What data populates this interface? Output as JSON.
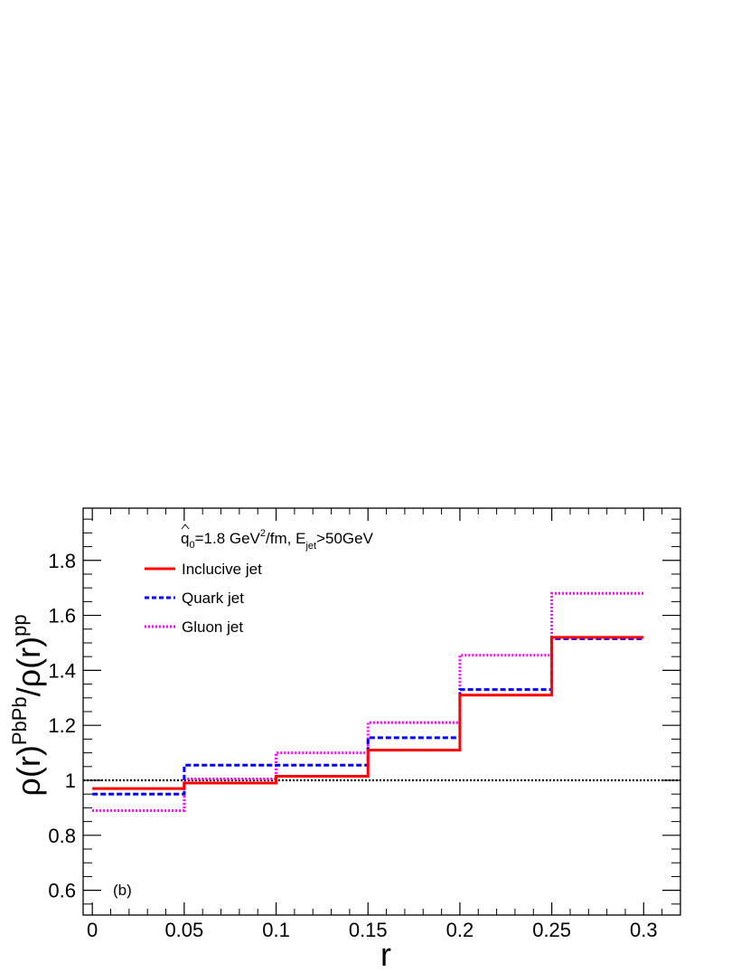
{
  "chart_data": {
    "type": "line",
    "step": true,
    "x_edges": [
      0,
      0.05,
      0.1,
      0.15,
      0.2,
      0.25,
      0.3
    ],
    "xlim": [
      -0.005,
      0.32
    ],
    "ylim": [
      0.51,
      1.99
    ],
    "xlabel": "r",
    "ylabel": {
      "base": "ρ(r)",
      "num_sup": "PbPb",
      "slash": "/",
      "den": "ρ(r)",
      "den_sup": "pp"
    },
    "x_ticks": [
      {
        "value": 0,
        "label": "0"
      },
      {
        "value": 0.05,
        "label": "0.05"
      },
      {
        "value": 0.1,
        "label": "0.1"
      },
      {
        "value": 0.15,
        "label": "0.15"
      },
      {
        "value": 0.2,
        "label": "0.2"
      },
      {
        "value": 0.25,
        "label": "0.25"
      },
      {
        "value": 0.3,
        "label": "0.3"
      }
    ],
    "y_ticks": [
      {
        "value": 0.6,
        "label": "0.6"
      },
      {
        "value": 0.8,
        "label": "0.8"
      },
      {
        "value": 1.0,
        "label": "1"
      },
      {
        "value": 1.2,
        "label": "1.2"
      },
      {
        "value": 1.4,
        "label": "1.4"
      },
      {
        "value": 1.6,
        "label": "1.6"
      },
      {
        "value": 1.8,
        "label": "1.8"
      }
    ],
    "reference_line": {
      "y": 1.0,
      "color": "#000000",
      "style": "dotted"
    },
    "series": [
      {
        "name": "Inclucive jet",
        "values": [
          0.97,
          0.99,
          1.015,
          1.11,
          1.31,
          1.52
        ],
        "color": "#ff0000",
        "style": "solid"
      },
      {
        "name": "Quark jet",
        "values": [
          0.95,
          1.055,
          1.055,
          1.155,
          1.33,
          1.515
        ],
        "color": "#0000ff",
        "style": "dashed"
      },
      {
        "name": "Gluon jet",
        "values": [
          0.89,
          1.005,
          1.1,
          1.21,
          1.455,
          1.68
        ],
        "color": "#ff00ff",
        "style": "dotted"
      }
    ],
    "annotation": {
      "qhat": "q",
      "qhat_sub": "0",
      "mid": "=1.8 GeV",
      "mid_sup": "2",
      "mid2": "/fm, E",
      "e_sub": "jet",
      "tail": ">50GeV"
    },
    "panel_label": "(b)",
    "legend_placement": "top-left",
    "grid": false
  }
}
